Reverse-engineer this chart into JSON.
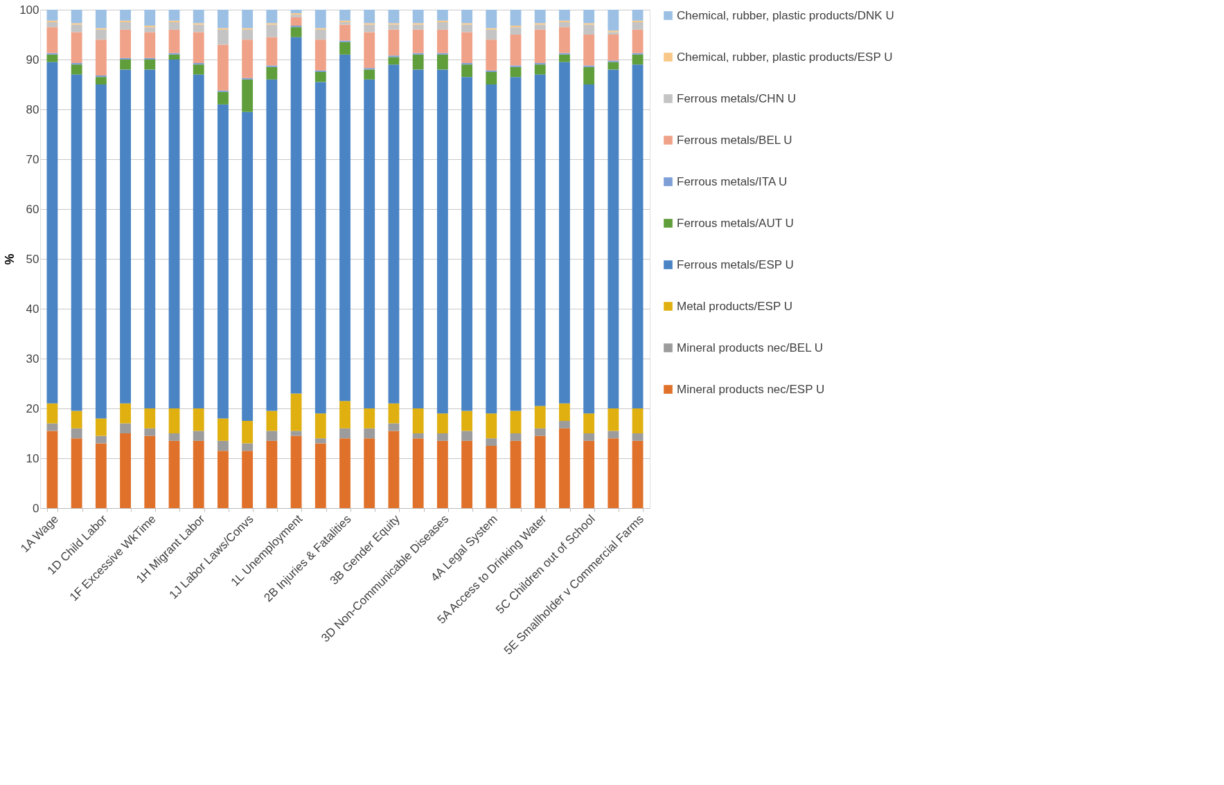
{
  "chart_data": {
    "type": "bar",
    "stacked": true,
    "ylabel": "%",
    "ylim": [
      0,
      100
    ],
    "yticks": [
      0,
      10,
      20,
      30,
      40,
      50,
      60,
      70,
      80,
      90,
      100
    ],
    "grid": "y",
    "legend": "right",
    "categories": [
      "1A Wage",
      null,
      "1D Child Labor",
      null,
      "1F Excessive WkTime",
      null,
      "1H Migrant Labor",
      null,
      "1J Labor Laws/Convs",
      null,
      "1L Unemployment",
      null,
      "2B Injuries & Fatalities",
      null,
      "3B Gender Equity",
      null,
      "3D Non-Communicable Diseases",
      null,
      "4A Legal System",
      null,
      "5A Access to Drinking Water",
      null,
      "5C Children out of School",
      null,
      "5E Smallholder v Commercial Farms"
    ],
    "series": [
      {
        "name": "Mineral products nec/ESP U",
        "color": "#e0712a",
        "values": [
          15.5,
          14,
          13,
          15,
          14.5,
          13.5,
          13.5,
          11.5,
          11.5,
          13.5,
          14.5,
          13,
          14,
          14,
          15.5,
          14,
          13.5,
          13.5,
          12.5,
          13.5,
          14.5,
          16,
          13.5,
          14,
          13.5
        ]
      },
      {
        "name": "Mineral products nec/BEL U",
        "color": "#9c9c9c",
        "values": [
          1.5,
          2,
          1.5,
          2,
          1.5,
          1.5,
          2,
          2,
          1.5,
          2,
          1,
          1,
          2,
          2,
          1.5,
          1,
          1.5,
          2,
          1.5,
          1.5,
          1.5,
          1.5,
          1.5,
          1.5,
          1.5
        ]
      },
      {
        "name": "Metal products/ESP U",
        "color": "#e0b010",
        "values": [
          4,
          3.5,
          3.5,
          4,
          4,
          5,
          4.5,
          4.5,
          4.5,
          4,
          7.5,
          5,
          5.5,
          4,
          4,
          5,
          4,
          4,
          5,
          4.5,
          4.5,
          3.5,
          4,
          4.5,
          5
        ]
      },
      {
        "name": "Ferrous metals/ESP U",
        "color": "#4a84c4",
        "values": [
          68.5,
          67.5,
          67,
          67,
          68,
          70,
          67,
          63,
          62,
          66.5,
          71.5,
          66.5,
          69.5,
          66,
          68,
          68,
          69,
          67,
          66,
          67,
          66.5,
          68.5,
          66,
          68,
          69
        ]
      },
      {
        "name": "Ferrous metals/AUT U",
        "color": "#5f9e3a",
        "values": [
          1.5,
          2,
          1.5,
          2,
          2,
          1,
          2,
          2.5,
          6.5,
          2.5,
          2,
          2,
          2.5,
          2,
          1.5,
          3,
          3,
          2.5,
          2.5,
          2,
          2,
          1.5,
          3.5,
          1.5,
          2
        ]
      },
      {
        "name": "Ferrous metals/ITA U",
        "color": "#7d9fd6",
        "values": [
          0.3,
          0.3,
          0.3,
          0.3,
          0.3,
          0.3,
          0.3,
          0.3,
          0.3,
          0.3,
          0.3,
          0.3,
          0.3,
          0.3,
          0.3,
          0.3,
          0.3,
          0.3,
          0.3,
          0.3,
          0.3,
          0.3,
          0.3,
          0.3,
          0.3
        ]
      },
      {
        "name": "Ferrous metals/BEL U",
        "color": "#f0a288",
        "values": [
          5.2,
          6.2,
          7.2,
          5.7,
          5.2,
          4.7,
          6.2,
          9.2,
          7.7,
          5.7,
          1.7,
          6.2,
          3.2,
          7.2,
          5.2,
          4.7,
          4.7,
          6.2,
          6.2,
          6.2,
          6.7,
          5.2,
          6.2,
          5.2,
          4.7
        ]
      },
      {
        "name": "Ferrous metals/CHN U",
        "color": "#c4c4c4",
        "values": [
          1,
          1.5,
          2,
          1.5,
          1,
          1.5,
          1.5,
          3,
          2,
          2.5,
          0.5,
          2,
          0.5,
          1.5,
          1,
          1,
          1.5,
          1.5,
          2,
          1.5,
          1,
          1,
          2,
          0.5,
          1.5
        ]
      },
      {
        "name": "Chemical, rubber, plastic products/ESP U",
        "color": "#f8c888",
        "values": [
          0.3,
          0.3,
          0.3,
          0.3,
          0.3,
          0.3,
          0.3,
          0.3,
          0.3,
          0.3,
          0.3,
          0.3,
          0.3,
          0.3,
          0.3,
          0.3,
          0.3,
          0.3,
          0.3,
          0.3,
          0.3,
          0.3,
          0.3,
          0.3,
          0.3
        ]
      },
      {
        "name": "Chemical, rubber, plastic products/DNK U",
        "color": "#9cc0e4",
        "values": [
          2.2,
          2.7,
          3.7,
          2.2,
          3.2,
          2.2,
          2.7,
          3.7,
          3.7,
          2.7,
          0.7,
          3.7,
          2.2,
          2.7,
          2.7,
          2.7,
          2.2,
          2.7,
          3.7,
          3.2,
          2.7,
          2.2,
          2.7,
          4.2,
          2.2
        ]
      }
    ]
  }
}
